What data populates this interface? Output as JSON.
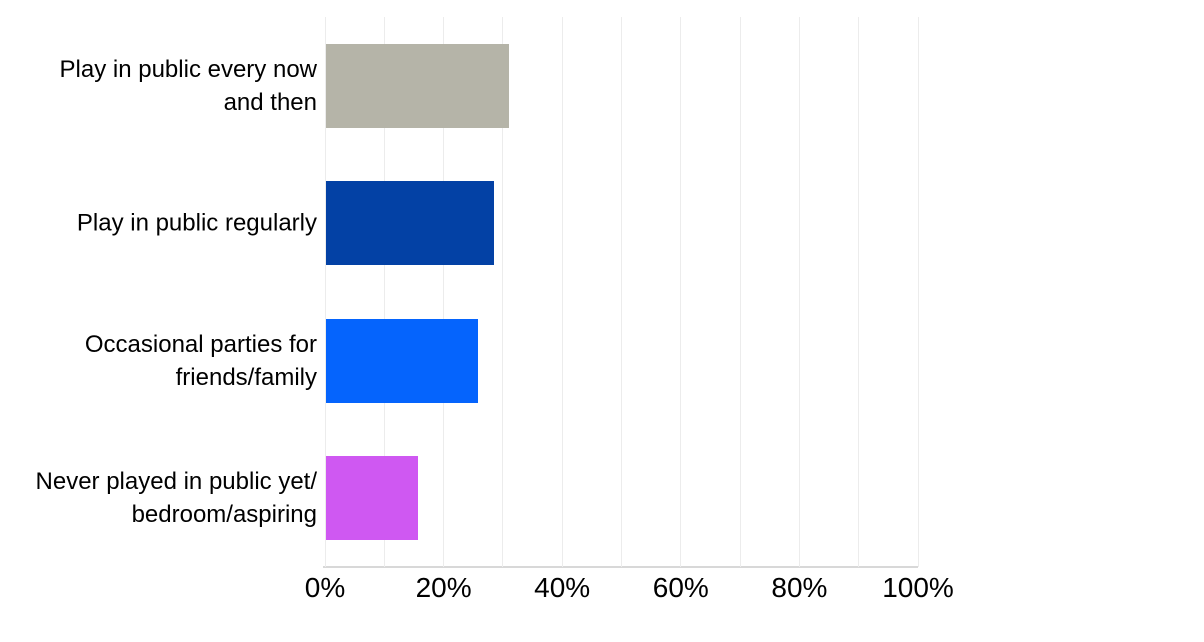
{
  "chart_data": {
    "type": "bar",
    "orientation": "horizontal",
    "title": "",
    "xlabel": "",
    "ylabel": "",
    "categories": [
      "Play in public every now and then",
      "Play in public regularly",
      "Occasional parties for friends/family",
      "Never played in public yet/bedroom/aspiring"
    ],
    "category_lines": [
      [
        "Play in public every now",
        "and then"
      ],
      [
        "Play in public regularly"
      ],
      [
        "Occasional parties for",
        "friends/family"
      ],
      [
        "Never played in public yet/",
        "bedroom/aspiring"
      ]
    ],
    "values": [
      30.9,
      28.3,
      25.6,
      15.5
    ],
    "unit": "%",
    "bar_colors": [
      "#b5b4a8",
      "#0341a5",
      "#0564fd",
      "#cf58f2"
    ],
    "xlim": [
      0,
      100
    ],
    "x_ticks": [
      {
        "value": 0,
        "label": "0%"
      },
      {
        "value": 20,
        "label": "20%"
      },
      {
        "value": 40,
        "label": "40%"
      },
      {
        "value": 60,
        "label": "60%"
      },
      {
        "value": 80,
        "label": "80%"
      },
      {
        "value": 100,
        "label": "100%"
      }
    ],
    "gridline_step": 10,
    "grid": true,
    "legend": false,
    "colors": {
      "background": "#ffffff",
      "gridline": "#ececec",
      "axis_line": "#d8d8d8",
      "text": "#000000"
    }
  }
}
